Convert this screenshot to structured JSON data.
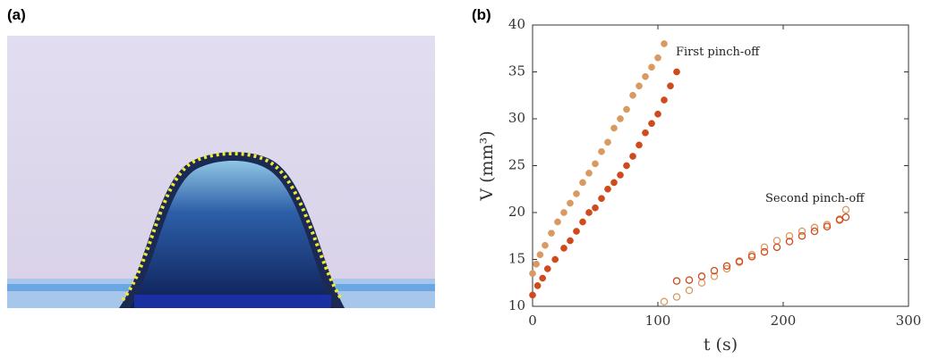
{
  "photo": {
    "label": "(a)"
  },
  "chart_data": {
    "type": "scatter",
    "panel_label": "(b)",
    "x_label": "t (s)",
    "y_label": "V (mm³)",
    "annotations": [
      "First pinch-off",
      "Second pinch-off"
    ],
    "xlim": [
      0,
      300
    ],
    "xticks": [
      0,
      100,
      200,
      300
    ],
    "ylim": [
      10,
      40
    ],
    "yticks": [
      10,
      15,
      20,
      25,
      30,
      35,
      40
    ],
    "grid": false,
    "series": [
      {
        "color": "#d99a62",
        "marker": "filled",
        "x": [
          0,
          3,
          6,
          10,
          15,
          20,
          25,
          30,
          35,
          40,
          45,
          50,
          55,
          60,
          65,
          70,
          75,
          80,
          85,
          90,
          95,
          100,
          105
        ],
        "values": [
          13.5,
          14.5,
          15.5,
          16.5,
          17.8,
          19,
          20,
          21,
          22,
          23.2,
          24.2,
          25.2,
          26.5,
          27.5,
          29,
          30,
          31,
          32.5,
          33.5,
          34.5,
          35.5,
          36.5,
          38
        ]
      },
      {
        "color": "#cf4a1c",
        "marker": "filled",
        "x": [
          0,
          4,
          8,
          12,
          18,
          25,
          30,
          35,
          40,
          45,
          50,
          55,
          60,
          65,
          70,
          75,
          80,
          85,
          90,
          95,
          100,
          105,
          110,
          115
        ],
        "values": [
          11.2,
          12.2,
          13,
          14,
          15,
          16.2,
          17,
          18,
          19,
          20,
          20.5,
          21.5,
          22.5,
          23.2,
          24,
          25,
          26,
          27.2,
          28.5,
          29.5,
          30.5,
          32,
          33.5,
          35
        ]
      },
      {
        "color": "#d99a62",
        "marker": "hollow",
        "x": [
          105,
          115,
          125,
          135,
          145,
          155,
          165,
          175,
          185,
          195,
          205,
          215,
          225,
          235,
          245,
          250
        ],
        "values": [
          10.5,
          11,
          11.7,
          12.5,
          13.2,
          14,
          14.7,
          15.5,
          16.3,
          17,
          17.5,
          18,
          18.4,
          18.7,
          19.3,
          20.3
        ]
      },
      {
        "color": "#cf4a1c",
        "marker": "hollow",
        "x": [
          115,
          125,
          135,
          145,
          155,
          165,
          175,
          185,
          195,
          205,
          215,
          225,
          235,
          245,
          250
        ],
        "values": [
          12.7,
          12.8,
          13.2,
          13.8,
          14.3,
          14.8,
          15.3,
          15.8,
          16.3,
          16.9,
          17.5,
          18,
          18.5,
          19.2,
          19.5
        ]
      }
    ]
  }
}
